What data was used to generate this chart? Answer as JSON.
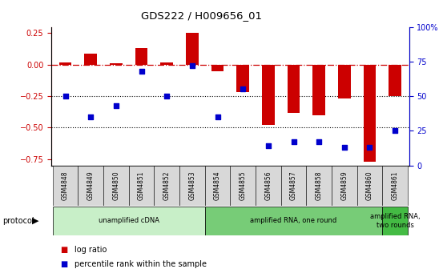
{
  "title": "GDS222 / H009656_01",
  "samples": [
    "GSM4848",
    "GSM4849",
    "GSM4850",
    "GSM4851",
    "GSM4852",
    "GSM4853",
    "GSM4854",
    "GSM4855",
    "GSM4856",
    "GSM4857",
    "GSM4858",
    "GSM4859",
    "GSM4860",
    "GSM4861"
  ],
  "log_ratio": [
    0.02,
    0.09,
    0.01,
    0.13,
    0.02,
    0.25,
    -0.05,
    -0.22,
    -0.48,
    -0.38,
    -0.4,
    -0.27,
    -0.77,
    -0.25
  ],
  "percentile_pct": [
    50,
    35,
    43,
    68,
    50,
    72,
    35,
    55,
    14,
    17,
    17,
    13,
    13,
    25
  ],
  "protocol_groups": [
    {
      "label": "unamplified cDNA",
      "start": 0,
      "end": 5,
      "color": "#c8efc8"
    },
    {
      "label": "amplified RNA, one round",
      "start": 6,
      "end": 12,
      "color": "#77cc77"
    },
    {
      "label": "amplified RNA,\ntwo rounds",
      "start": 13,
      "end": 13,
      "color": "#44bb44"
    }
  ],
  "bar_color": "#cc0000",
  "dot_color": "#0000cc",
  "ref_line_color": "#cc0000",
  "ylim_left": [
    -0.8,
    0.3
  ],
  "ylim_right": [
    0,
    100
  ],
  "yticks_left": [
    -0.75,
    -0.5,
    -0.25,
    0,
    0.25
  ],
  "yticks_right": [
    0,
    25,
    50,
    75,
    100
  ],
  "background_color": "#ffffff",
  "tick_label_color_left": "#cc0000",
  "tick_label_color_right": "#0000cc",
  "sample_box_color": "#d8d8d8",
  "bar_width": 0.5
}
